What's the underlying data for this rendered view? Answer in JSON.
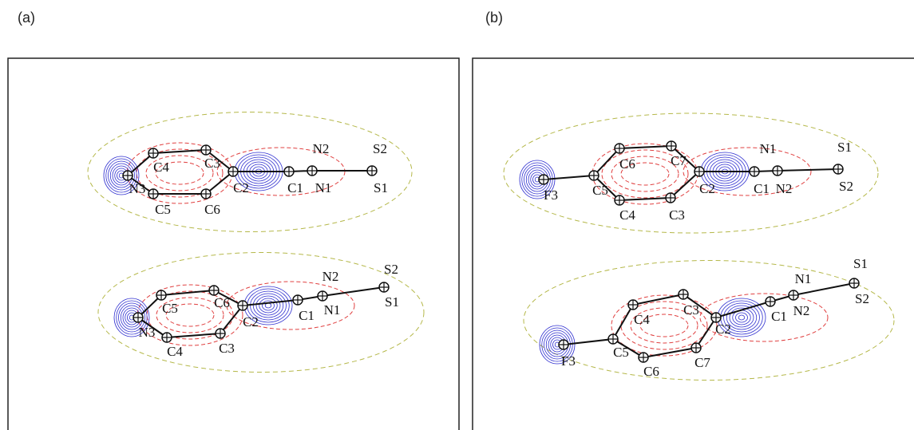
{
  "panels": [
    {
      "label": "(a)",
      "molecules": [
        {
          "atoms": [
            "N3",
            "C4",
            "C3",
            "C2",
            "C1",
            "N2",
            "N1",
            "S2",
            "S1",
            "C5",
            "C6"
          ]
        },
        {
          "atoms": [
            "N3",
            "C5",
            "C6",
            "C2",
            "C1",
            "N2",
            "N1",
            "S2",
            "S1",
            "C4",
            "C3"
          ]
        }
      ]
    },
    {
      "label": "(b)",
      "molecules": [
        {
          "atoms": [
            "F3",
            "C5",
            "C6",
            "C7",
            "C2",
            "C1",
            "N1",
            "N2",
            "S1",
            "S2",
            "C4",
            "C3"
          ]
        },
        {
          "atoms": [
            "F3",
            "C5",
            "C4",
            "C3",
            "C2",
            "C1",
            "N1",
            "N2",
            "S1",
            "S2",
            "C6",
            "C7"
          ]
        }
      ]
    }
  ]
}
